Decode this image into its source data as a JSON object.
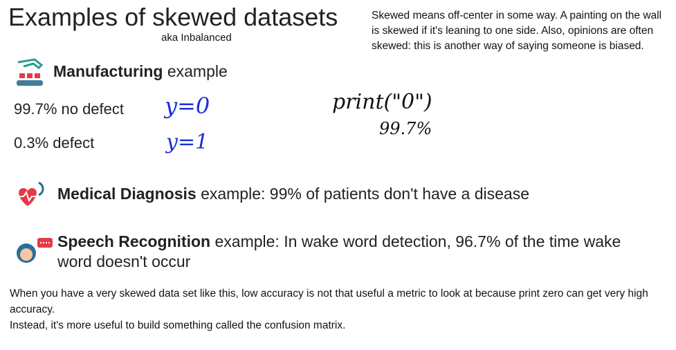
{
  "title": "Examples of skewed datasets",
  "subtitle": "aka Inbalanced",
  "side_note": "Skewed means off-center in some way.  A painting on the wall is skewed if it's leaning to one side. Also, opinions are often skewed: this is another way of saying someone is biased.",
  "manufacturing": {
    "label": "Manufacturing",
    "text": "example",
    "rows": [
      {
        "text": "99.7% no defect",
        "annotation": "y=0"
      },
      {
        "text": "0.3%  defect",
        "annotation": "y=1"
      }
    ]
  },
  "handwritten_notes": [
    "print(\"0\")",
    "99.7%"
  ],
  "examples": [
    {
      "label": "Medical Diagnosis",
      "text": "example: 99% of patients don't have a disease"
    },
    {
      "label": "Speech Recognition",
      "text": "example: In wake word detection, 96.7% of the time wake word doesn't occur"
    }
  ],
  "notes": [
    "When you have a very skewed data set like this, low accuracy is not that useful a metric to look at because print zero can get very high accuracy.",
    "Instead, it's more useful to build something called the confusion matrix."
  ]
}
